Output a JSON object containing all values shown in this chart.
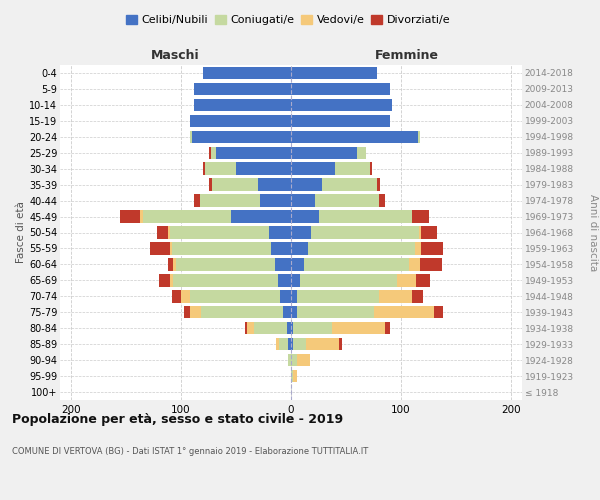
{
  "age_groups": [
    "100+",
    "95-99",
    "90-94",
    "85-89",
    "80-84",
    "75-79",
    "70-74",
    "65-69",
    "60-64",
    "55-59",
    "50-54",
    "45-49",
    "40-44",
    "35-39",
    "30-34",
    "25-29",
    "20-24",
    "15-19",
    "10-14",
    "5-9",
    "0-4"
  ],
  "birth_years": [
    "≤ 1918",
    "1919-1923",
    "1924-1928",
    "1929-1933",
    "1934-1938",
    "1939-1943",
    "1944-1948",
    "1949-1953",
    "1954-1958",
    "1959-1963",
    "1964-1968",
    "1969-1973",
    "1974-1978",
    "1979-1983",
    "1984-1988",
    "1989-1993",
    "1994-1998",
    "1999-2003",
    "2004-2008",
    "2009-2013",
    "2014-2018"
  ],
  "males": {
    "celibi": [
      0,
      0,
      0,
      3,
      4,
      7,
      10,
      12,
      15,
      18,
      20,
      55,
      28,
      30,
      50,
      68,
      90,
      92,
      88,
      88,
      80
    ],
    "coniugati": [
      0,
      0,
      3,
      8,
      30,
      75,
      82,
      95,
      90,
      90,
      90,
      80,
      55,
      42,
      28,
      5,
      2,
      0,
      0,
      0,
      0
    ],
    "vedovi": [
      0,
      0,
      0,
      3,
      6,
      10,
      8,
      3,
      2,
      2,
      2,
      2,
      0,
      0,
      0,
      0,
      0,
      0,
      0,
      0,
      0
    ],
    "divorziati": [
      0,
      0,
      0,
      0,
      2,
      5,
      8,
      10,
      5,
      18,
      10,
      18,
      5,
      3,
      2,
      2,
      0,
      0,
      0,
      0,
      0
    ]
  },
  "females": {
    "nubili": [
      0,
      0,
      0,
      2,
      2,
      5,
      5,
      8,
      12,
      15,
      18,
      25,
      22,
      28,
      40,
      60,
      115,
      90,
      92,
      90,
      78
    ],
    "coniugate": [
      0,
      2,
      5,
      12,
      35,
      70,
      75,
      88,
      95,
      98,
      98,
      85,
      58,
      50,
      32,
      8,
      2,
      0,
      0,
      0,
      0
    ],
    "vedove": [
      0,
      3,
      12,
      30,
      48,
      55,
      30,
      18,
      10,
      5,
      2,
      0,
      0,
      0,
      0,
      0,
      0,
      0,
      0,
      0,
      0
    ],
    "divorziate": [
      0,
      0,
      0,
      2,
      5,
      8,
      10,
      12,
      20,
      20,
      15,
      15,
      5,
      3,
      2,
      0,
      0,
      0,
      0,
      0,
      0
    ]
  },
  "colors": {
    "celibi": "#4472c4",
    "coniugati": "#c5d9a0",
    "vedovi": "#f5c97a",
    "divorziati": "#c0392b"
  },
  "legend_labels": [
    "Celibi/Nubili",
    "Coniugati/e",
    "Vedovi/e",
    "Divorziati/e"
  ],
  "xlim": 210,
  "title": "Popolazione per età, sesso e stato civile - 2019",
  "subtitle": "COMUNE DI VERTOVA (BG) - Dati ISTAT 1° gennaio 2019 - Elaborazione TUTTITALIA.IT",
  "ylabel_left": "Fasce di età",
  "ylabel_right": "Anni di nascita",
  "xlabel_left": "Maschi",
  "xlabel_right": "Femmine",
  "bg_color": "#f0f0f0",
  "plot_bg": "#ffffff"
}
